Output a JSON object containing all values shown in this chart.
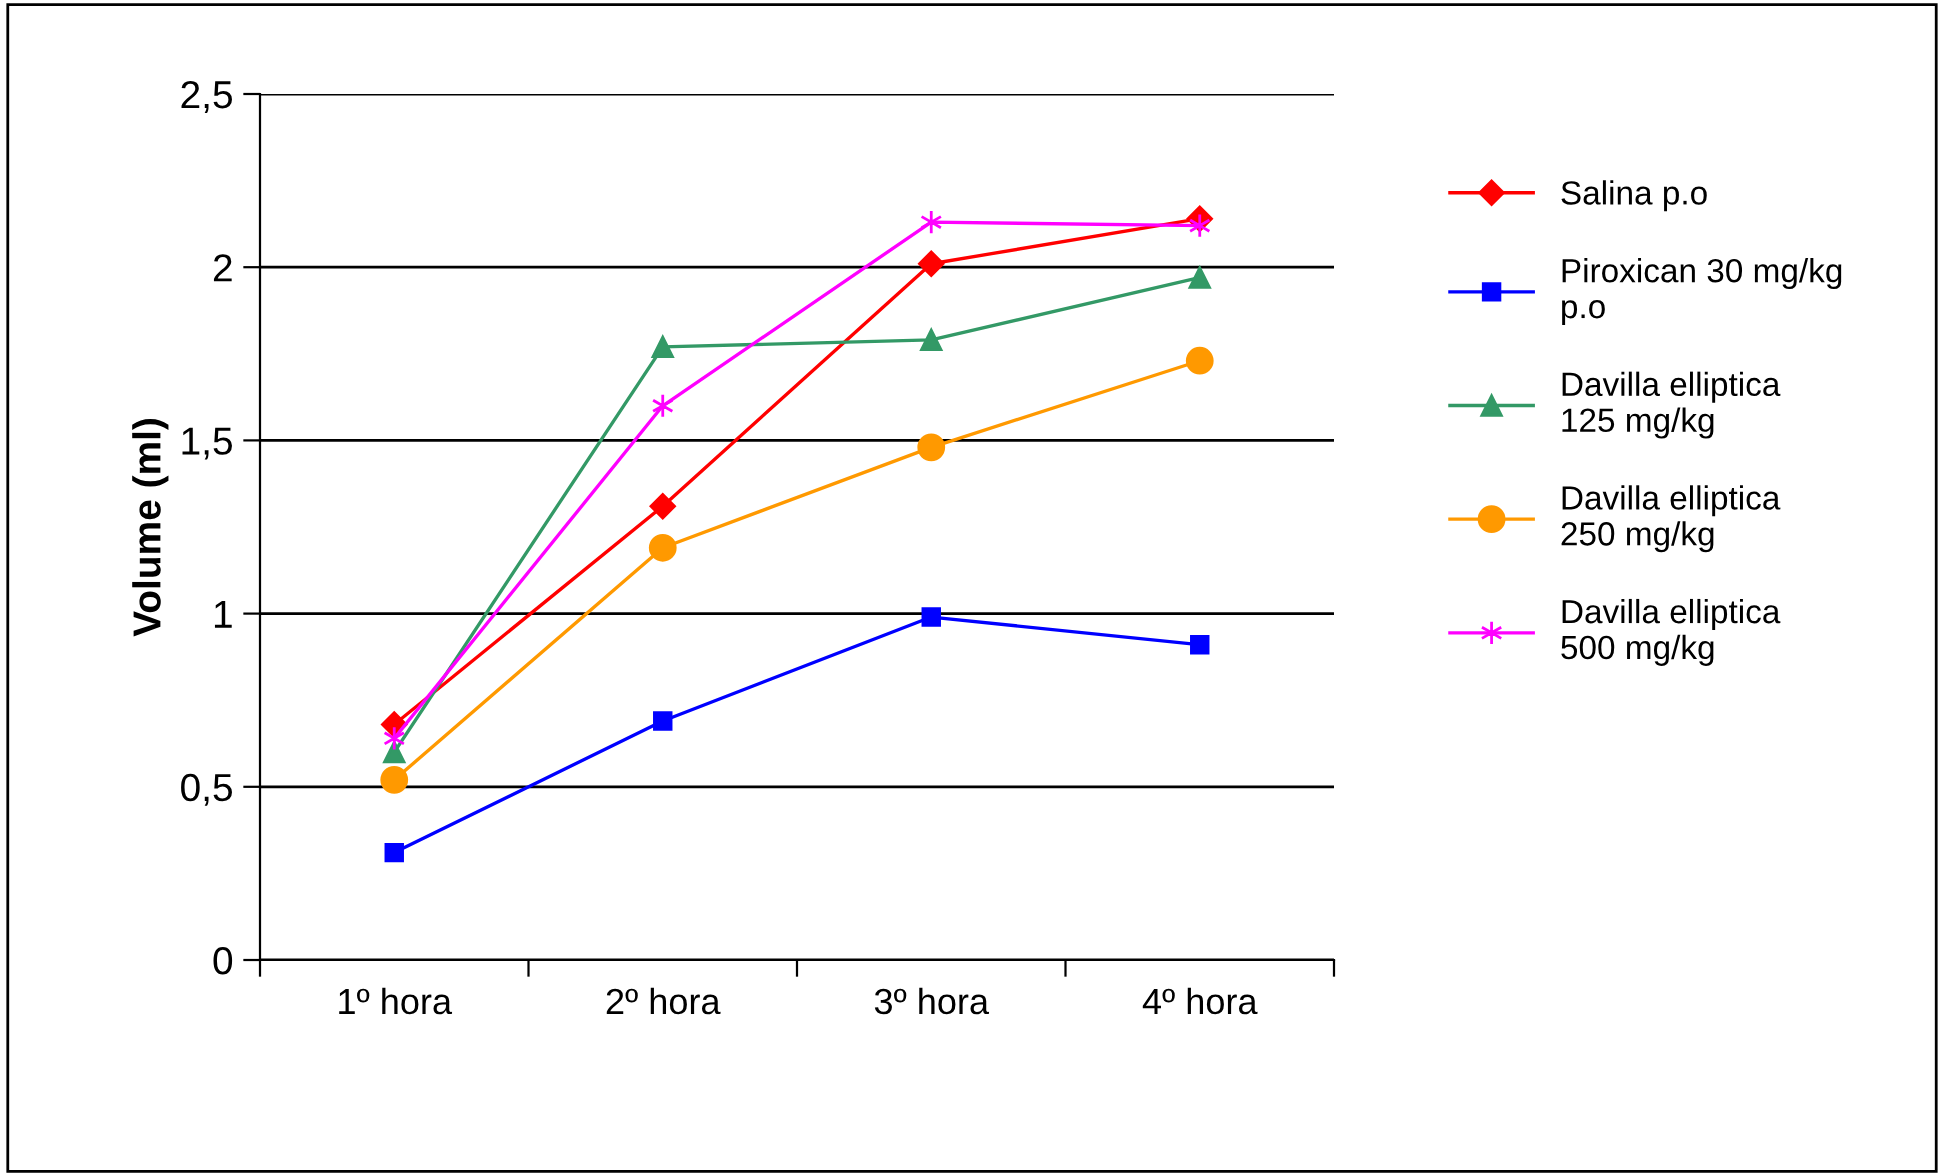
{
  "chart_data": {
    "type": "line",
    "ylabel": "Volume (ml)",
    "categories": [
      "1º hora",
      "2º hora",
      "3º hora",
      "4º hora"
    ],
    "series": [
      {
        "name": "Salina p.o",
        "color": "#ff0000",
        "marker": "diamond",
        "values": [
          0.68,
          1.31,
          2.01,
          2.14
        ]
      },
      {
        "name": "Piroxican 30 mg/kg p.o",
        "color": "#0000ff",
        "marker": "square",
        "values": [
          0.31,
          0.69,
          0.99,
          0.91
        ]
      },
      {
        "name": "Davilla elliptica 125 mg/kg",
        "color": "#339966",
        "marker": "triangle",
        "values": [
          0.6,
          1.77,
          1.79,
          1.97
        ]
      },
      {
        "name": "Davilla elliptica 250 mg/kg",
        "color": "#ff9900",
        "marker": "circle",
        "values": [
          0.52,
          1.19,
          1.48,
          1.73
        ]
      },
      {
        "name": "Davilla elliptica 500 mg/kg",
        "color": "#ff00ff",
        "marker": "cross",
        "values": [
          0.64,
          1.6,
          2.13,
          2.12
        ]
      }
    ],
    "ylim": [
      0,
      2.5
    ],
    "yticks": [
      0,
      {
        "value": 0.5,
        "label": "0,5"
      },
      1,
      {
        "value": 1.5,
        "label": "1,5"
      },
      2,
      {
        "value": 2.5,
        "label": "2,5"
      }
    ],
    "grid": "y",
    "legend": "right"
  }
}
